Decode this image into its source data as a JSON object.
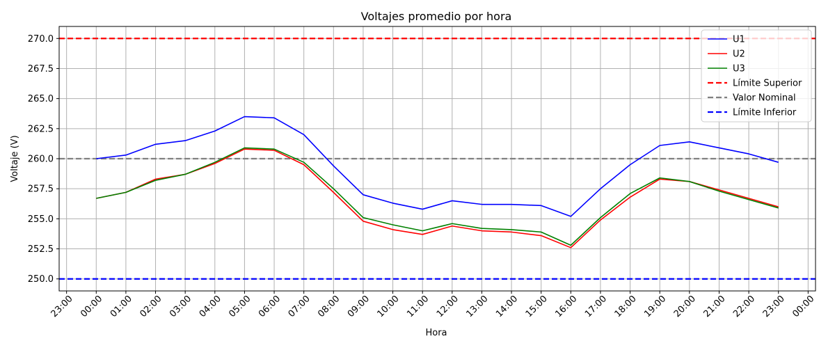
{
  "chart_data": {
    "type": "line",
    "title": "Voltajes promedio por hora",
    "xlabel": "Hora",
    "ylabel": "Voltaje (V)",
    "x": [
      "00:00",
      "01:00",
      "02:00",
      "03:00",
      "04:00",
      "05:00",
      "06:00",
      "07:00",
      "08:00",
      "09:00",
      "10:00",
      "11:00",
      "12:00",
      "13:00",
      "14:00",
      "15:00",
      "16:00",
      "17:00",
      "18:00",
      "19:00",
      "20:00",
      "21:00",
      "22:00",
      "23:00"
    ],
    "xticks": [
      "23:00",
      "00:00",
      "01:00",
      "02:00",
      "03:00",
      "04:00",
      "05:00",
      "06:00",
      "07:00",
      "08:00",
      "09:00",
      "10:00",
      "11:00",
      "12:00",
      "13:00",
      "14:00",
      "15:00",
      "16:00",
      "17:00",
      "18:00",
      "19:00",
      "20:00",
      "21:00",
      "22:00",
      "23:00",
      "00:00"
    ],
    "ylim": [
      249.0,
      271.0
    ],
    "yticks": [
      "250.0",
      "252.5",
      "255.0",
      "257.5",
      "260.0",
      "262.5",
      "265.0",
      "267.5",
      "270.0"
    ],
    "grid": true,
    "legend_position": "top-right",
    "series": [
      {
        "name": "U1",
        "color": "#0000ff",
        "values": [
          260.0,
          260.3,
          261.2,
          261.5,
          262.3,
          263.5,
          263.4,
          262.0,
          259.4,
          257.0,
          256.3,
          255.8,
          256.5,
          256.2,
          256.2,
          256.1,
          255.2,
          257.5,
          259.5,
          261.1,
          261.4,
          260.9,
          260.4,
          259.7
        ]
      },
      {
        "name": "U2",
        "color": "#ff0000",
        "values": [
          256.7,
          257.2,
          258.3,
          258.7,
          259.6,
          260.8,
          260.7,
          259.5,
          257.2,
          254.8,
          254.1,
          253.7,
          254.4,
          254.0,
          253.9,
          253.6,
          252.6,
          254.9,
          256.8,
          258.3,
          258.1,
          257.4,
          256.7,
          256.0
        ]
      },
      {
        "name": "U3",
        "color": "#008000",
        "values": [
          256.7,
          257.2,
          258.2,
          258.7,
          259.7,
          260.9,
          260.8,
          259.7,
          257.5,
          255.1,
          254.5,
          254.0,
          254.6,
          254.2,
          254.1,
          253.9,
          252.8,
          255.1,
          257.1,
          258.4,
          258.1,
          257.3,
          256.6,
          255.9
        ]
      }
    ],
    "reference_lines": [
      {
        "name": "Límite Superior",
        "value": 270.0,
        "color": "#ff0000"
      },
      {
        "name": "Valor Nominal",
        "value": 260.0,
        "color": "#808080"
      },
      {
        "name": "Límite Inferior",
        "value": 250.0,
        "color": "#0000ff"
      }
    ]
  }
}
